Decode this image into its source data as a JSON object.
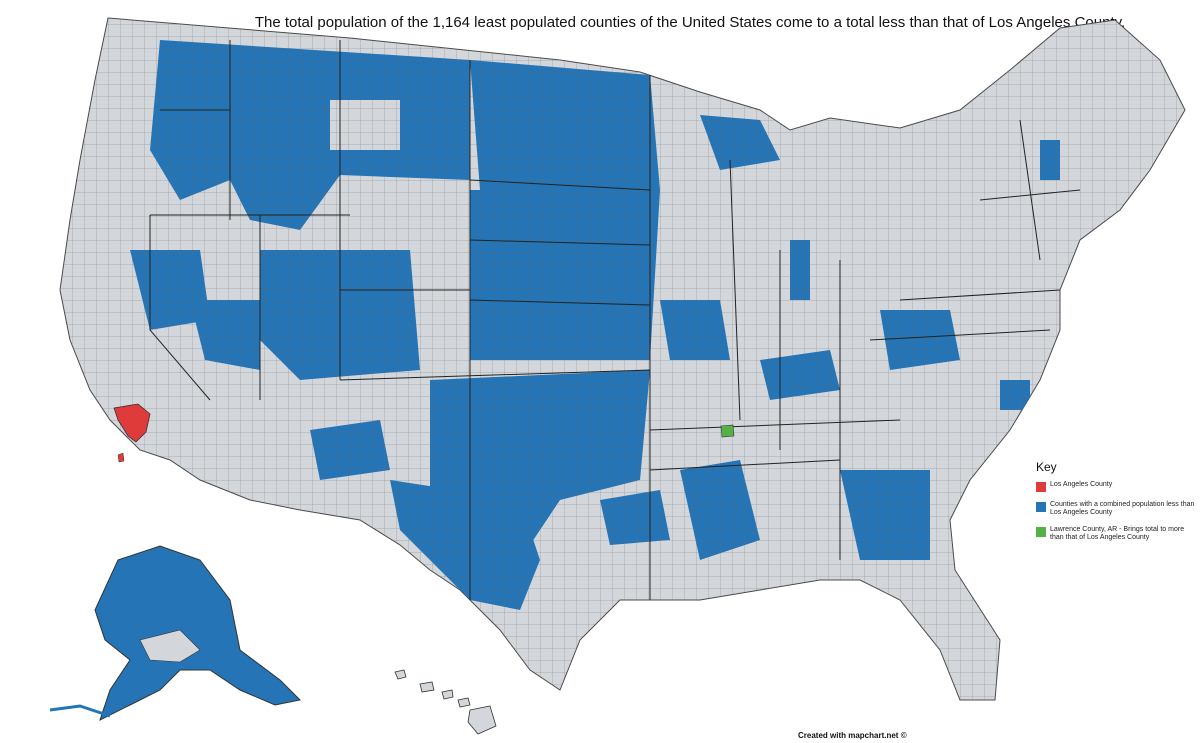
{
  "title": "The total population of the 1,164 least populated counties of the United States come to a total less than that of Los Angeles County.",
  "colors": {
    "background_fill": "#d3d7db",
    "county_border": "#4a4a4a",
    "blue_counties": "#2474b6",
    "los_angeles": "#e03b3b",
    "lawrence": "#54b146"
  },
  "legend": {
    "title": "Key",
    "items": [
      {
        "color": "#e03b3b",
        "label": "Los Angeles County"
      },
      {
        "color": "#2474b6",
        "label": "Counties with a combined population less than Los Angeles County"
      },
      {
        "color": "#54b146",
        "label": "Lawrence County, AR - Brings total to more than that of Los Angeles County"
      }
    ]
  },
  "credit": "Created with mapchart.net ©"
}
